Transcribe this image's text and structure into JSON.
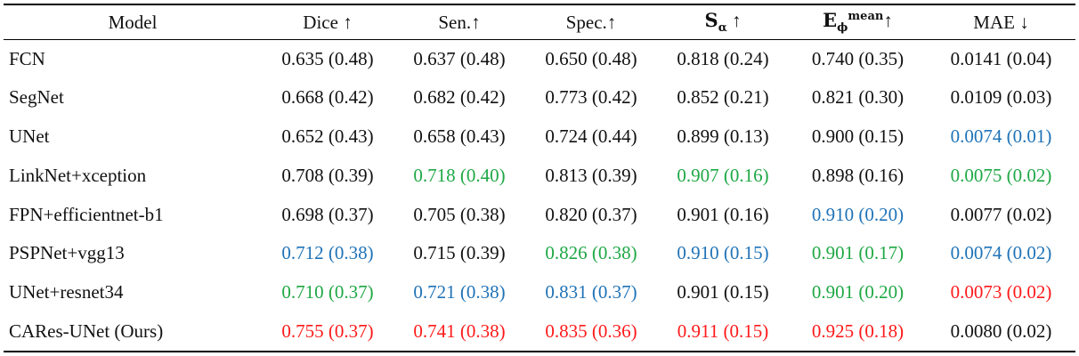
{
  "table": {
    "headers": {
      "model": "Model",
      "dice": "Dice ↑",
      "sen": "Sen.↑",
      "spec": "Spec.↑",
      "s_main": "S",
      "s_sub": "α",
      "s_arrow": "↑",
      "e_main": "E",
      "e_sub": "ϕ",
      "e_sup": "mean",
      "e_arrow": "↑",
      "mae": "MAE ↓"
    },
    "rows": [
      {
        "model": "FCN",
        "dice": "0.635 (0.48)",
        "sen": "0.637 (0.48)",
        "spec": "0.650 (0.48)",
        "s": "0.818 (0.24)",
        "e": "0.740 (0.35)",
        "mae": "0.0141 (0.04)"
      },
      {
        "model": "SegNet",
        "dice": "0.668 (0.42)",
        "sen": "0.682 (0.42)",
        "spec": "0.773 (0.42)",
        "s": "0.852 (0.21)",
        "e": "0.821 (0.30)",
        "mae": "0.0109 (0.03)"
      },
      {
        "model": "UNet",
        "dice": "0.652 (0.43)",
        "sen": "0.658 (0.43)",
        "spec": "0.724 (0.44)",
        "s": "0.899 (0.13)",
        "e": "0.900 (0.15)",
        "mae": "0.0074 (0.01)"
      },
      {
        "model": "LinkNet+xception",
        "dice": "0.708 (0.39)",
        "sen": "0.718 (0.40)",
        "spec": "0.813 (0.39)",
        "s": "0.907 (0.16)",
        "e": "0.898 (0.16)",
        "mae": "0.0075 (0.02)"
      },
      {
        "model": "FPN+efficientnet-b1",
        "dice": "0.698 (0.37)",
        "sen": "0.705 (0.38)",
        "spec": "0.820 (0.37)",
        "s": "0.901 (0.16)",
        "e": "0.910 (0.20)",
        "mae": "0.0077 (0.02)"
      },
      {
        "model": "PSPNet+vgg13",
        "dice": "0.712 (0.38)",
        "sen": "0.715 (0.39)",
        "spec": "0.826 (0.38)",
        "s": "0.910 (0.15)",
        "e": "0.901 (0.17)",
        "mae": "0.0074 (0.02)"
      },
      {
        "model": "UNet+resnet34",
        "dice": "0.710 (0.37)",
        "sen": "0.721 (0.38)",
        "spec": "0.831 (0.37)",
        "s": "0.901 (0.15)",
        "e": "0.901 (0.20)",
        "mae": "0.0073 (0.02)"
      },
      {
        "model": "CARes-UNet (Ours)",
        "dice": "0.755 (0.37)",
        "sen": "0.741 (0.38)",
        "spec": "0.835 (0.36)",
        "s": "0.911 (0.15)",
        "e": "0.925 (0.18)",
        "mae": "0.0080 (0.02)"
      }
    ]
  },
  "colors": {
    "first_place": "#ff1a1a",
    "second_place": "#1fa845",
    "third_place": "#1f73b7",
    "default_text": "#111111"
  }
}
